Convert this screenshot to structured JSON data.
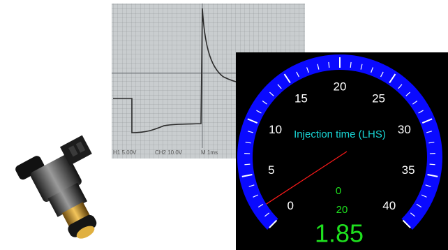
{
  "oscilloscope": {
    "labels": [
      "H1 5.00V",
      "CH2 10.0V",
      "M 1ms"
    ]
  },
  "chart_data": {
    "type": "gauge",
    "title": "Injection time (LHS)",
    "lim": [
      0,
      40
    ],
    "ticks": [
      0,
      5,
      10,
      15,
      20,
      25,
      30,
      35,
      40
    ],
    "value": 1.85,
    "min_readout": 0,
    "max_readout": 20,
    "ring_color": "#0a0aff",
    "needle_color": "#ff1a1a",
    "readout_color": "#1ee01e",
    "title_color": "#19d6d6"
  }
}
